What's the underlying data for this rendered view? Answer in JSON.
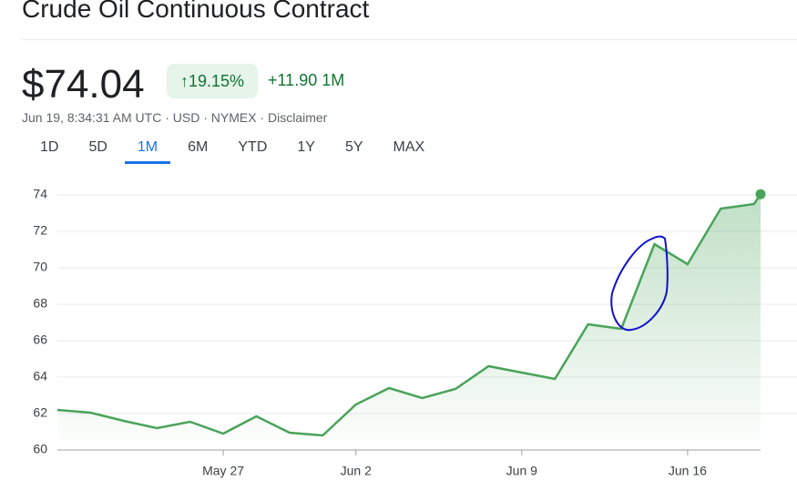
{
  "header": {
    "title": "Crude Oil Continuous Contract",
    "price": "$74.04",
    "change_pct": "19.15%",
    "change_abs": "+11.90",
    "change_period": "1M",
    "meta": "Jun 19, 8:34:31 AM UTC · USD · NYMEX · Disclaimer"
  },
  "ranges": {
    "items": [
      "1D",
      "5D",
      "1M",
      "6M",
      "YTD",
      "1Y",
      "5Y",
      "MAX"
    ],
    "selected": "1M"
  },
  "chart_data": {
    "type": "line",
    "x": [
      0,
      1,
      2,
      3,
      4,
      5,
      6,
      7,
      8,
      9,
      10,
      11,
      12,
      13,
      14,
      15,
      16,
      17,
      18,
      19,
      20,
      21,
      21.2
    ],
    "series": [
      {
        "name": "Price",
        "color": "#4aa35a",
        "values": [
          62.2,
          62.05,
          61.6,
          61.2,
          61.55,
          60.9,
          61.85,
          60.95,
          60.8,
          62.5,
          63.4,
          62.85,
          63.35,
          64.6,
          64.25,
          63.9,
          66.9,
          66.65,
          71.3,
          70.2,
          73.25,
          73.5,
          74.04
        ]
      }
    ],
    "xlim": [
      0,
      21.2
    ],
    "xticks": [
      {
        "value": 5,
        "label": "May 27"
      },
      {
        "value": 9,
        "label": "Jun 2"
      },
      {
        "value": 14,
        "label": "Jun 9"
      },
      {
        "value": 19,
        "label": "Jun 16"
      }
    ],
    "ylim": [
      60,
      74
    ],
    "yticks": [
      60,
      62,
      64,
      66,
      68,
      70,
      72,
      74
    ],
    "grid": true
  }
}
